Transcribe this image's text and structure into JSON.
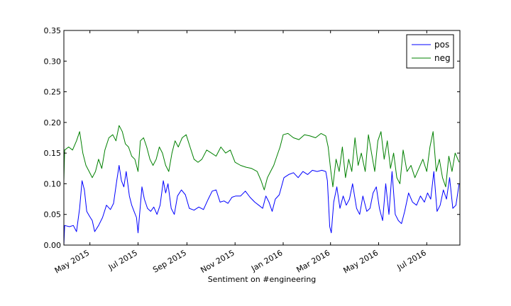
{
  "chart_data": {
    "type": "line",
    "title": "",
    "xlabel": "Sentiment on #engineering",
    "ylabel": "",
    "xlim": [
      "2015-03-29",
      "2016-08-12"
    ],
    "ylim": [
      0,
      0.35
    ],
    "yticks": [
      "0.00",
      "0.05",
      "0.10",
      "0.15",
      "0.20",
      "0.25",
      "0.30",
      "0.35"
    ],
    "xticks": [
      {
        "label": "May 2015",
        "date": "2015-05-01"
      },
      {
        "label": "Jul 2015",
        "date": "2015-07-01"
      },
      {
        "label": "Sep 2015",
        "date": "2015-09-01"
      },
      {
        "label": "Nov 2015",
        "date": "2015-11-01"
      },
      {
        "label": "Jan 2016",
        "date": "2016-01-01"
      },
      {
        "label": "Mar 2016",
        "date": "2016-03-01"
      },
      {
        "label": "May 2016",
        "date": "2016-05-01"
      },
      {
        "label": "Jul 2016",
        "date": "2016-07-01"
      }
    ],
    "grid": false,
    "legend_position": "top-right",
    "series": [
      {
        "name": "pos",
        "color": "#0000ff",
        "points": [
          [
            "2015-03-29",
            0.0
          ],
          [
            "2015-03-30",
            0.032
          ],
          [
            "2015-04-05",
            0.03
          ],
          [
            "2015-04-10",
            0.032
          ],
          [
            "2015-04-14",
            0.022
          ],
          [
            "2015-04-18",
            0.06
          ],
          [
            "2015-04-21",
            0.105
          ],
          [
            "2015-04-24",
            0.09
          ],
          [
            "2015-04-27",
            0.055
          ],
          [
            "2015-04-30",
            0.048
          ],
          [
            "2015-05-04",
            0.04
          ],
          [
            "2015-05-07",
            0.022
          ],
          [
            "2015-05-12",
            0.032
          ],
          [
            "2015-05-17",
            0.045
          ],
          [
            "2015-05-22",
            0.065
          ],
          [
            "2015-05-27",
            0.058
          ],
          [
            "2015-05-31",
            0.068
          ],
          [
            "2015-06-04",
            0.105
          ],
          [
            "2015-06-07",
            0.13
          ],
          [
            "2015-06-10",
            0.105
          ],
          [
            "2015-06-13",
            0.095
          ],
          [
            "2015-06-16",
            0.12
          ],
          [
            "2015-06-20",
            0.08
          ],
          [
            "2015-06-23",
            0.065
          ],
          [
            "2015-06-26",
            0.055
          ],
          [
            "2015-06-29",
            0.045
          ],
          [
            "2015-07-01",
            0.02
          ],
          [
            "2015-07-03",
            0.05
          ],
          [
            "2015-07-06",
            0.095
          ],
          [
            "2015-07-09",
            0.075
          ],
          [
            "2015-07-13",
            0.06
          ],
          [
            "2015-07-17",
            0.055
          ],
          [
            "2015-07-21",
            0.062
          ],
          [
            "2015-07-25",
            0.05
          ],
          [
            "2015-07-29",
            0.065
          ],
          [
            "2015-08-02",
            0.105
          ],
          [
            "2015-08-05",
            0.085
          ],
          [
            "2015-08-08",
            0.1
          ],
          [
            "2015-08-12",
            0.06
          ],
          [
            "2015-08-16",
            0.05
          ],
          [
            "2015-08-20",
            0.08
          ],
          [
            "2015-08-25",
            0.09
          ],
          [
            "2015-08-30",
            0.082
          ],
          [
            "2015-09-04",
            0.06
          ],
          [
            "2015-09-10",
            0.057
          ],
          [
            "2015-09-16",
            0.062
          ],
          [
            "2015-09-22",
            0.058
          ],
          [
            "2015-09-28",
            0.075
          ],
          [
            "2015-10-03",
            0.088
          ],
          [
            "2015-10-08",
            0.09
          ],
          [
            "2015-10-13",
            0.07
          ],
          [
            "2015-10-18",
            0.072
          ],
          [
            "2015-10-23",
            0.068
          ],
          [
            "2015-10-28",
            0.078
          ],
          [
            "2015-11-02",
            0.08
          ],
          [
            "2015-11-08",
            0.08
          ],
          [
            "2015-11-14",
            0.088
          ],
          [
            "2015-11-20",
            0.078
          ],
          [
            "2015-11-26",
            0.07
          ],
          [
            "2015-12-01",
            0.065
          ],
          [
            "2015-12-06",
            0.06
          ],
          [
            "2015-12-10",
            0.08
          ],
          [
            "2015-12-14",
            0.07
          ],
          [
            "2015-12-18",
            0.055
          ],
          [
            "2015-12-22",
            0.075
          ],
          [
            "2015-12-27",
            0.082
          ],
          [
            "2016-01-02",
            0.11
          ],
          [
            "2016-01-08",
            0.115
          ],
          [
            "2016-01-14",
            0.118
          ],
          [
            "2016-01-20",
            0.11
          ],
          [
            "2016-01-26",
            0.12
          ],
          [
            "2016-02-01",
            0.115
          ],
          [
            "2016-02-07",
            0.122
          ],
          [
            "2016-02-13",
            0.12
          ],
          [
            "2016-02-19",
            0.122
          ],
          [
            "2016-02-24",
            0.12
          ],
          [
            "2016-02-26",
            0.105
          ],
          [
            "2016-02-29",
            0.03
          ],
          [
            "2016-03-02",
            0.02
          ],
          [
            "2016-03-05",
            0.07
          ],
          [
            "2016-03-09",
            0.095
          ],
          [
            "2016-03-13",
            0.06
          ],
          [
            "2016-03-17",
            0.08
          ],
          [
            "2016-03-21",
            0.065
          ],
          [
            "2016-03-25",
            0.075
          ],
          [
            "2016-03-29",
            0.1
          ],
          [
            "2016-04-03",
            0.06
          ],
          [
            "2016-04-07",
            0.05
          ],
          [
            "2016-04-11",
            0.08
          ],
          [
            "2016-04-16",
            0.055
          ],
          [
            "2016-04-20",
            0.06
          ],
          [
            "2016-04-24",
            0.085
          ],
          [
            "2016-04-28",
            0.095
          ],
          [
            "2016-05-02",
            0.06
          ],
          [
            "2016-05-06",
            0.04
          ],
          [
            "2016-05-10",
            0.1
          ],
          [
            "2016-05-14",
            0.05
          ],
          [
            "2016-05-18",
            0.12
          ],
          [
            "2016-05-22",
            0.05
          ],
          [
            "2016-05-26",
            0.04
          ],
          [
            "2016-05-30",
            0.035
          ],
          [
            "2016-06-03",
            0.055
          ],
          [
            "2016-06-08",
            0.085
          ],
          [
            "2016-06-13",
            0.07
          ],
          [
            "2016-06-18",
            0.065
          ],
          [
            "2016-06-23",
            0.08
          ],
          [
            "2016-06-28",
            0.07
          ],
          [
            "2016-07-02",
            0.085
          ],
          [
            "2016-07-06",
            0.075
          ],
          [
            "2016-07-10",
            0.12
          ],
          [
            "2016-07-14",
            0.055
          ],
          [
            "2016-07-18",
            0.065
          ],
          [
            "2016-07-22",
            0.09
          ],
          [
            "2016-07-26",
            0.075
          ],
          [
            "2016-07-30",
            0.11
          ],
          [
            "2016-08-03",
            0.06
          ],
          [
            "2016-08-07",
            0.065
          ],
          [
            "2016-08-11",
            0.1
          ]
        ]
      },
      {
        "name": "neg",
        "color": "#008000",
        "points": [
          [
            "2015-03-29",
            0.105
          ],
          [
            "2015-03-30",
            0.155
          ],
          [
            "2015-04-04",
            0.16
          ],
          [
            "2015-04-09",
            0.155
          ],
          [
            "2015-04-14",
            0.17
          ],
          [
            "2015-04-18",
            0.185
          ],
          [
            "2015-04-22",
            0.15
          ],
          [
            "2015-04-26",
            0.13
          ],
          [
            "2015-04-30",
            0.12
          ],
          [
            "2015-05-04",
            0.11
          ],
          [
            "2015-05-08",
            0.12
          ],
          [
            "2015-05-12",
            0.14
          ],
          [
            "2015-05-16",
            0.125
          ],
          [
            "2015-05-20",
            0.155
          ],
          [
            "2015-05-25",
            0.175
          ],
          [
            "2015-05-30",
            0.18
          ],
          [
            "2015-06-03",
            0.17
          ],
          [
            "2015-06-07",
            0.195
          ],
          [
            "2015-06-11",
            0.185
          ],
          [
            "2015-06-15",
            0.165
          ],
          [
            "2015-06-19",
            0.16
          ],
          [
            "2015-06-23",
            0.145
          ],
          [
            "2015-06-27",
            0.14
          ],
          [
            "2015-07-01",
            0.12
          ],
          [
            "2015-07-04",
            0.17
          ],
          [
            "2015-07-08",
            0.175
          ],
          [
            "2015-07-12",
            0.16
          ],
          [
            "2015-07-16",
            0.14
          ],
          [
            "2015-07-20",
            0.13
          ],
          [
            "2015-07-24",
            0.14
          ],
          [
            "2015-07-28",
            0.16
          ],
          [
            "2015-08-01",
            0.15
          ],
          [
            "2015-08-05",
            0.13
          ],
          [
            "2015-08-09",
            0.12
          ],
          [
            "2015-08-13",
            0.15
          ],
          [
            "2015-08-17",
            0.17
          ],
          [
            "2015-08-21",
            0.16
          ],
          [
            "2015-08-26",
            0.175
          ],
          [
            "2015-08-31",
            0.18
          ],
          [
            "2015-09-05",
            0.16
          ],
          [
            "2015-09-10",
            0.14
          ],
          [
            "2015-09-15",
            0.135
          ],
          [
            "2015-09-20",
            0.14
          ],
          [
            "2015-09-26",
            0.155
          ],
          [
            "2015-10-02",
            0.15
          ],
          [
            "2015-10-08",
            0.145
          ],
          [
            "2015-10-14",
            0.16
          ],
          [
            "2015-10-20",
            0.15
          ],
          [
            "2015-10-26",
            0.155
          ],
          [
            "2015-11-01",
            0.135
          ],
          [
            "2015-11-08",
            0.13
          ],
          [
            "2015-11-15",
            0.127
          ],
          [
            "2015-11-22",
            0.125
          ],
          [
            "2015-11-29",
            0.12
          ],
          [
            "2015-12-04",
            0.105
          ],
          [
            "2015-12-08",
            0.09
          ],
          [
            "2015-12-12",
            0.11
          ],
          [
            "2015-12-16",
            0.12
          ],
          [
            "2015-12-20",
            0.13
          ],
          [
            "2015-12-24",
            0.145
          ],
          [
            "2015-12-28",
            0.16
          ],
          [
            "2016-01-01",
            0.18
          ],
          [
            "2016-01-07",
            0.182
          ],
          [
            "2016-01-14",
            0.175
          ],
          [
            "2016-01-21",
            0.172
          ],
          [
            "2016-01-28",
            0.18
          ],
          [
            "2016-02-04",
            0.178
          ],
          [
            "2016-02-11",
            0.175
          ],
          [
            "2016-02-18",
            0.182
          ],
          [
            "2016-02-24",
            0.178
          ],
          [
            "2016-02-27",
            0.16
          ],
          [
            "2016-03-01",
            0.125
          ],
          [
            "2016-03-04",
            0.095
          ],
          [
            "2016-03-08",
            0.14
          ],
          [
            "2016-03-12",
            0.12
          ],
          [
            "2016-03-16",
            0.16
          ],
          [
            "2016-03-20",
            0.11
          ],
          [
            "2016-03-24",
            0.14
          ],
          [
            "2016-03-28",
            0.12
          ],
          [
            "2016-04-01",
            0.175
          ],
          [
            "2016-04-05",
            0.13
          ],
          [
            "2016-04-09",
            0.15
          ],
          [
            "2016-04-14",
            0.12
          ],
          [
            "2016-04-18",
            0.18
          ],
          [
            "2016-04-22",
            0.15
          ],
          [
            "2016-04-26",
            0.12
          ],
          [
            "2016-04-30",
            0.17
          ],
          [
            "2016-05-04",
            0.185
          ],
          [
            "2016-05-08",
            0.14
          ],
          [
            "2016-05-12",
            0.17
          ],
          [
            "2016-05-16",
            0.125
          ],
          [
            "2016-05-20",
            0.15
          ],
          [
            "2016-05-24",
            0.11
          ],
          [
            "2016-05-28",
            0.1
          ],
          [
            "2016-06-01",
            0.155
          ],
          [
            "2016-06-06",
            0.12
          ],
          [
            "2016-06-11",
            0.13
          ],
          [
            "2016-06-16",
            0.11
          ],
          [
            "2016-06-21",
            0.125
          ],
          [
            "2016-06-26",
            0.14
          ],
          [
            "2016-07-01",
            0.12
          ],
          [
            "2016-07-05",
            0.16
          ],
          [
            "2016-07-09",
            0.185
          ],
          [
            "2016-07-13",
            0.12
          ],
          [
            "2016-07-17",
            0.14
          ],
          [
            "2016-07-21",
            0.11
          ],
          [
            "2016-07-25",
            0.095
          ],
          [
            "2016-07-29",
            0.145
          ],
          [
            "2016-08-02",
            0.12
          ],
          [
            "2016-08-06",
            0.15
          ],
          [
            "2016-08-11",
            0.135
          ]
        ]
      }
    ]
  }
}
